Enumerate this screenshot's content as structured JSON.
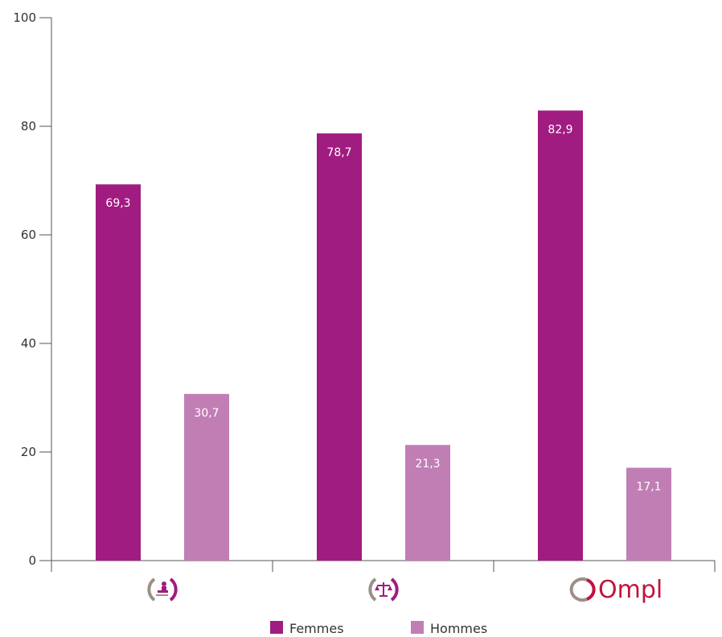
{
  "chart_data": {
    "type": "bar",
    "categories": [
      "notaire",
      "justice",
      "Ompl"
    ],
    "series": [
      {
        "name": "Femmes",
        "values": [
          69.3,
          78.7,
          82.9
        ],
        "labels": [
          "69,3",
          "78,7",
          "82,9"
        ],
        "color": "#a11c80"
      },
      {
        "name": "Hommes",
        "values": [
          30.7,
          21.3,
          17.1
        ],
        "labels": [
          "30,7",
          "21,3",
          "17,1"
        ],
        "color": "#c17eb5"
      }
    ],
    "ylim": [
      0,
      100
    ],
    "yticks": [
      {
        "value": 0,
        "label": "0"
      },
      {
        "value": 20,
        "label": "20"
      },
      {
        "value": 40,
        "label": "40"
      },
      {
        "value": 60,
        "label": "60"
      },
      {
        "value": 80,
        "label": "80"
      },
      {
        "value": 100,
        "label": "100"
      }
    ],
    "category_logos": [
      {
        "icon": "notary-stamp-logo-icon",
        "text": ""
      },
      {
        "icon": "justice-scale-logo-icon",
        "text": ""
      },
      {
        "icon": "ompl-logo",
        "text": "Ompl"
      }
    ],
    "legend": {
      "position": "bottom-center"
    },
    "grid": false,
    "colors": {
      "axis": "#555555",
      "logo_grey": "#9b8f88",
      "logo_accent": "#a11c80",
      "ompl_red": "#c0143c"
    }
  }
}
